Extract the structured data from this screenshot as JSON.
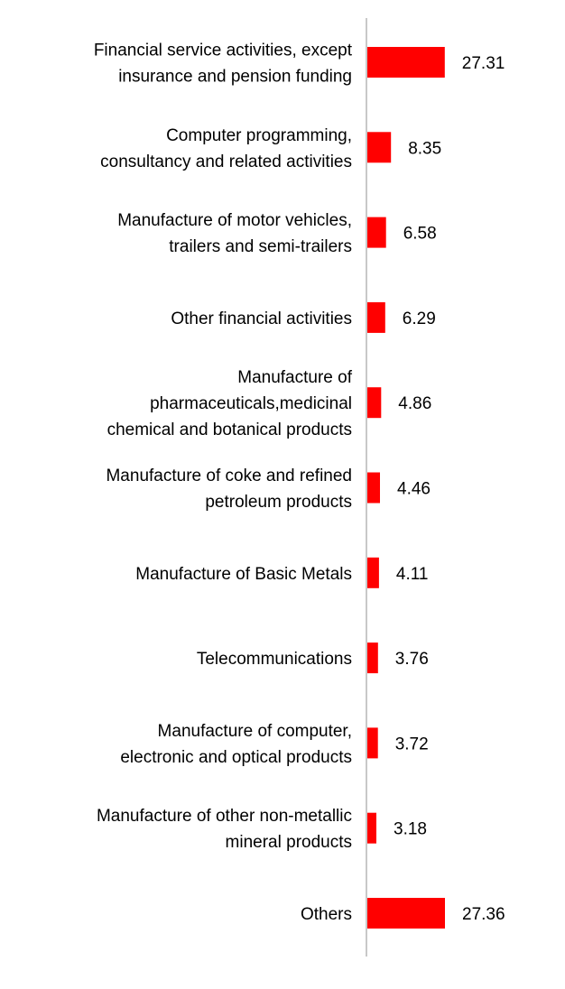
{
  "chart_data": {
    "type": "bar",
    "orientation": "horizontal",
    "title": "",
    "xlabel": "",
    "ylabel": "",
    "grid": false,
    "legend": "none",
    "bar_color": "#ff0000",
    "axis_color": "#c8c8c8",
    "xlim": [
      0,
      30
    ],
    "categories": [
      [
        "Financial service activities, except",
        "insurance and pension funding"
      ],
      [
        "Computer programming,",
        "consultancy and related activities"
      ],
      [
        "Manufacture of motor vehicles,",
        "trailers and semi-trailers"
      ],
      [
        "Other financial activities"
      ],
      [
        "Manufacture of",
        "pharmaceuticals,medicinal",
        "chemical and botanical products"
      ],
      [
        "Manufacture of coke and refined",
        "petroleum products"
      ],
      [
        "Manufacture of Basic Metals"
      ],
      [
        "Telecommunications"
      ],
      [
        "Manufacture of computer,",
        "electronic and optical products"
      ],
      [
        "Manufacture of other non-metallic",
        "mineral products"
      ],
      [
        "Others"
      ]
    ],
    "values": [
      27.31,
      8.35,
      6.58,
      6.29,
      4.86,
      4.46,
      4.11,
      3.76,
      3.72,
      3.18,
      27.36
    ],
    "value_labels": [
      "27.31",
      "8.35",
      "6.58",
      "6.29",
      "4.86",
      "4.46",
      "4.11",
      "3.76",
      "3.72",
      "3.18",
      "27.36"
    ]
  }
}
